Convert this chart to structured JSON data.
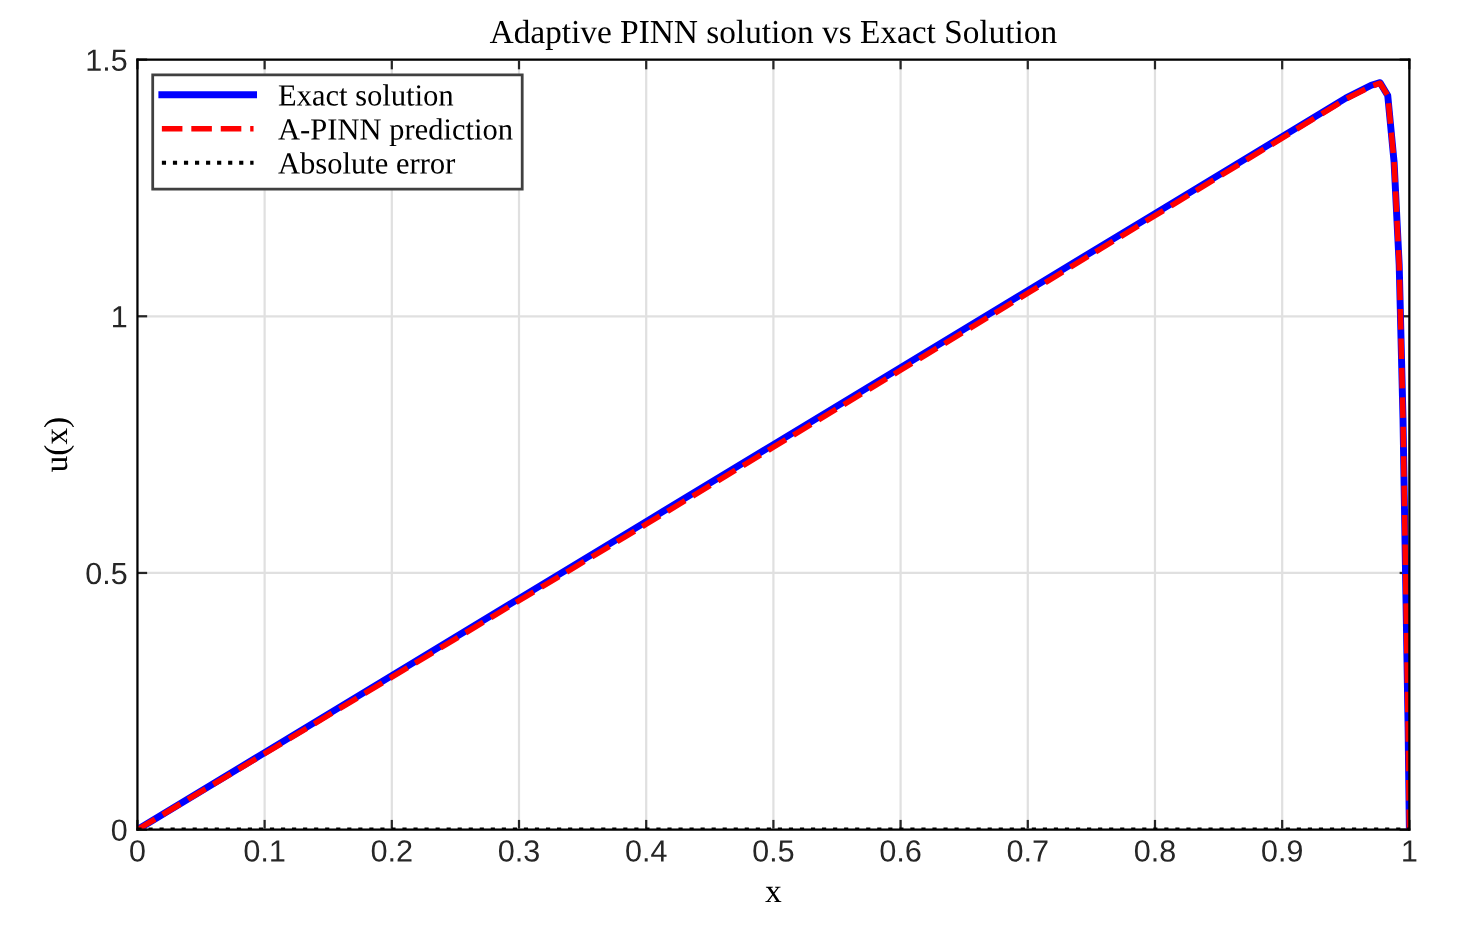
{
  "chart_data": {
    "type": "line",
    "title": "Adaptive PINN solution vs Exact Solution",
    "xlabel": "x",
    "ylabel": "u(x)",
    "xlim": [
      0,
      1
    ],
    "xticks": [
      0,
      0.1,
      0.2,
      0.3,
      0.4,
      0.5,
      0.6,
      0.7,
      0.8,
      0.9,
      1
    ],
    "ylim": [
      0,
      1.5
    ],
    "yticks": [
      0,
      0.5,
      1,
      1.5
    ],
    "grid": true,
    "legend": "top left",
    "x": [
      0,
      0.1,
      0.2,
      0.3,
      0.4,
      0.5,
      0.6,
      0.7,
      0.8,
      0.9,
      0.95,
      0.97,
      0.977,
      0.983,
      0.988,
      0.992,
      0.995,
      0.997,
      0.999,
      1
    ],
    "series": [
      {
        "name": "Exact solution",
        "color": "#0000ff",
        "line_style": "solid",
        "values": [
          0,
          0.15,
          0.3,
          0.45,
          0.6,
          0.75,
          0.9,
          1.05,
          1.2,
          1.35,
          1.425,
          1.45,
          1.455,
          1.43,
          1.3,
          1.1,
          0.8,
          0.5,
          0.2,
          0
        ]
      },
      {
        "name": "A-PINN prediction",
        "color": "#ff0000",
        "line_style": "dashed",
        "values": [
          0,
          0.148,
          0.297,
          0.446,
          0.595,
          0.745,
          0.895,
          1.045,
          1.196,
          1.347,
          1.423,
          1.448,
          1.454,
          1.43,
          1.3,
          1.1,
          0.8,
          0.5,
          0.2,
          0
        ]
      },
      {
        "name": "Absolute error",
        "color": "#000000",
        "line_style": "dotted",
        "values": [
          0,
          0,
          0,
          0,
          0,
          0,
          0,
          0,
          0,
          0,
          0,
          0,
          0,
          0,
          0,
          0,
          0,
          0,
          0,
          0
        ]
      }
    ]
  }
}
